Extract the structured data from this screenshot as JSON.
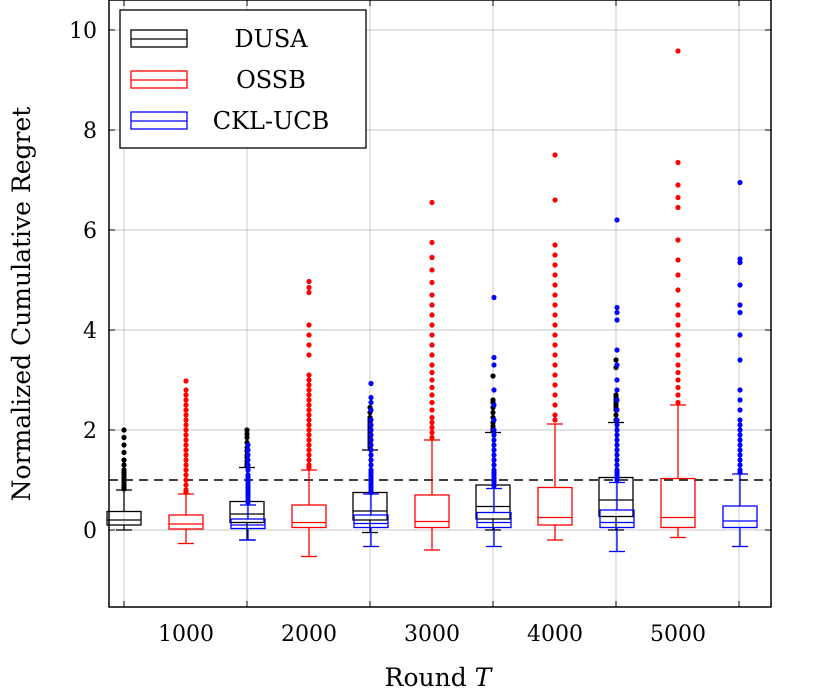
{
  "chart_data": {
    "type": "box",
    "title": "",
    "xlabel": "Round",
    "xlabel_var": "T",
    "ylabel": "Normalized Cumulative Regret",
    "ylim": [
      -1.5,
      10.5
    ],
    "yticks": [
      0,
      2,
      4,
      6,
      8,
      10
    ],
    "categories": [
      "1000",
      "2000",
      "3000",
      "4000",
      "5000"
    ],
    "reference_line": 1,
    "legend_position": "top-left",
    "grid": true,
    "series": [
      {
        "name": "DUSA",
        "color": "#000000",
        "boxes": [
          {
            "whisker_low": 0.0,
            "q1": 0.1,
            "median": 0.2,
            "q3": 0.37,
            "whisker_high": 0.8,
            "outliers": [
              0.82,
              0.85,
              0.88,
              0.9,
              0.95,
              1.0,
              1.05,
              1.1,
              1.15,
              1.2,
              1.3,
              1.4,
              1.55,
              1.7,
              1.85,
              2.0
            ]
          },
          {
            "whisker_low": -0.2,
            "q1": 0.15,
            "median": 0.32,
            "q3": 0.57,
            "whisker_high": 1.25,
            "outliers": [
              1.28,
              1.32,
              1.38,
              1.45,
              1.5,
              1.58,
              1.65,
              1.75,
              1.85,
              1.92,
              2.0
            ]
          },
          {
            "whisker_low": -0.05,
            "q1": 0.2,
            "median": 0.38,
            "q3": 0.75,
            "whisker_high": 1.6,
            "outliers": [
              1.65,
              1.7,
              1.75,
              1.8,
              1.85,
              1.9,
              1.95,
              2.0,
              2.05,
              2.1,
              2.15,
              2.2,
              2.25,
              2.35,
              2.45
            ]
          },
          {
            "whisker_low": 0.0,
            "q1": 0.22,
            "median": 0.47,
            "q3": 0.9,
            "whisker_high": 1.95,
            "outliers": [
              1.98,
              2.02,
              2.08,
              2.15,
              2.25,
              2.35,
              2.45,
              2.55,
              2.6,
              3.08
            ]
          },
          {
            "whisker_low": 0.0,
            "q1": 0.27,
            "median": 0.6,
            "q3": 1.05,
            "whisker_high": 2.15,
            "outliers": [
              2.2,
              2.3,
              2.4,
              2.45,
              2.5,
              2.55,
              2.6,
              2.65,
              2.7,
              3.25,
              3.4
            ]
          }
        ]
      },
      {
        "name": "OSSB",
        "color": "#ff0000",
        "boxes": [
          {
            "whisker_low": -0.27,
            "q1": 0.02,
            "median": 0.12,
            "q3": 0.3,
            "whisker_high": 0.72,
            "outliers": [
              0.75,
              0.8,
              0.9,
              1.0,
              1.1,
              1.2,
              1.3,
              1.4,
              1.5,
              1.6,
              1.7,
              1.8,
              1.9,
              2.0,
              2.1,
              2.2,
              2.3,
              2.4,
              2.5,
              2.6,
              2.7,
              2.8,
              2.98
            ]
          },
          {
            "whisker_low": -0.53,
            "q1": 0.05,
            "median": 0.15,
            "q3": 0.5,
            "whisker_high": 1.2,
            "outliers": [
              1.25,
              1.3,
              1.4,
              1.5,
              1.6,
              1.7,
              1.8,
              1.9,
              2.0,
              2.1,
              2.2,
              2.3,
              2.4,
              2.5,
              2.6,
              2.7,
              2.8,
              2.9,
              3.0,
              3.1,
              3.5,
              3.7,
              3.9,
              4.1,
              4.75,
              4.85,
              4.97
            ]
          },
          {
            "whisker_low": -0.4,
            "q1": 0.05,
            "median": 0.17,
            "q3": 0.7,
            "whisker_high": 1.8,
            "outliers": [
              1.85,
              1.95,
              2.05,
              2.15,
              2.25,
              2.4,
              2.55,
              2.7,
              2.85,
              3.0,
              3.15,
              3.3,
              3.5,
              3.7,
              3.9,
              4.1,
              4.3,
              4.5,
              4.7,
              4.95,
              5.2,
              5.45,
              5.75,
              6.55
            ]
          },
          {
            "whisker_low": -0.2,
            "q1": 0.1,
            "median": 0.25,
            "q3": 0.85,
            "whisker_high": 2.12,
            "outliers": [
              2.2,
              2.3,
              2.5,
              2.7,
              2.9,
              3.1,
              3.3,
              3.5,
              3.7,
              3.9,
              4.1,
              4.3,
              4.5,
              4.7,
              4.9,
              5.1,
              5.3,
              5.5,
              5.7,
              6.6,
              7.5
            ]
          },
          {
            "whisker_low": -0.15,
            "q1": 0.05,
            "median": 0.25,
            "q3": 1.03,
            "whisker_high": 2.5,
            "outliers": [
              2.55,
              2.7,
              2.85,
              3.0,
              3.15,
              3.3,
              3.5,
              3.7,
              3.9,
              4.1,
              4.3,
              4.5,
              4.8,
              5.1,
              5.4,
              5.8,
              6.45,
              6.65,
              6.9,
              7.35,
              9.58
            ]
          }
        ]
      },
      {
        "name": "CKL-UCB",
        "color": "#0000ff",
        "boxes": [
          {
            "whisker_low": -0.2,
            "q1": 0.03,
            "median": 0.1,
            "q3": 0.22,
            "whisker_high": 0.5,
            "outliers": [
              0.55,
              0.6,
              0.65,
              0.7,
              0.75,
              0.8,
              0.85,
              0.9,
              0.95,
              1.0,
              1.05,
              1.1,
              1.2,
              1.3,
              1.4,
              1.5,
              1.6,
              1.7
            ]
          },
          {
            "whisker_low": -0.33,
            "q1": 0.05,
            "median": 0.13,
            "q3": 0.3,
            "whisker_high": 0.72,
            "outliers": [
              0.75,
              0.8,
              0.85,
              0.9,
              0.95,
              1.0,
              1.05,
              1.1,
              1.15,
              1.2,
              1.3,
              1.4,
              1.5,
              1.6,
              1.7,
              1.8,
              1.9,
              2.0,
              2.1,
              2.2,
              2.4,
              2.55,
              2.65,
              2.93
            ]
          },
          {
            "whisker_low": -0.33,
            "q1": 0.05,
            "median": 0.15,
            "q3": 0.35,
            "whisker_high": 0.83,
            "outliers": [
              0.88,
              0.95,
              1.0,
              1.05,
              1.1,
              1.15,
              1.2,
              1.3,
              1.4,
              1.5,
              1.6,
              1.7,
              1.8,
              1.9,
              2.0,
              2.2,
              2.5,
              2.8,
              3.3,
              3.45,
              4.65
            ]
          },
          {
            "whisker_low": -0.43,
            "q1": 0.05,
            "median": 0.15,
            "q3": 0.4,
            "whisker_high": 0.95,
            "outliers": [
              1.0,
              1.05,
              1.1,
              1.15,
              1.2,
              1.3,
              1.4,
              1.5,
              1.6,
              1.7,
              1.8,
              1.9,
              2.0,
              2.1,
              2.2,
              2.4,
              2.6,
              2.8,
              3.0,
              3.3,
              3.6,
              4.2,
              4.35,
              4.45,
              6.2
            ]
          },
          {
            "whisker_low": -0.33,
            "q1": 0.05,
            "median": 0.18,
            "q3": 0.48,
            "whisker_high": 1.12,
            "outliers": [
              1.15,
              1.2,
              1.3,
              1.4,
              1.5,
              1.6,
              1.7,
              1.8,
              1.9,
              2.0,
              2.1,
              2.2,
              2.4,
              2.6,
              2.8,
              3.4,
              3.9,
              4.35,
              4.5,
              4.9,
              5.35,
              5.42,
              6.95
            ]
          }
        ]
      }
    ]
  }
}
